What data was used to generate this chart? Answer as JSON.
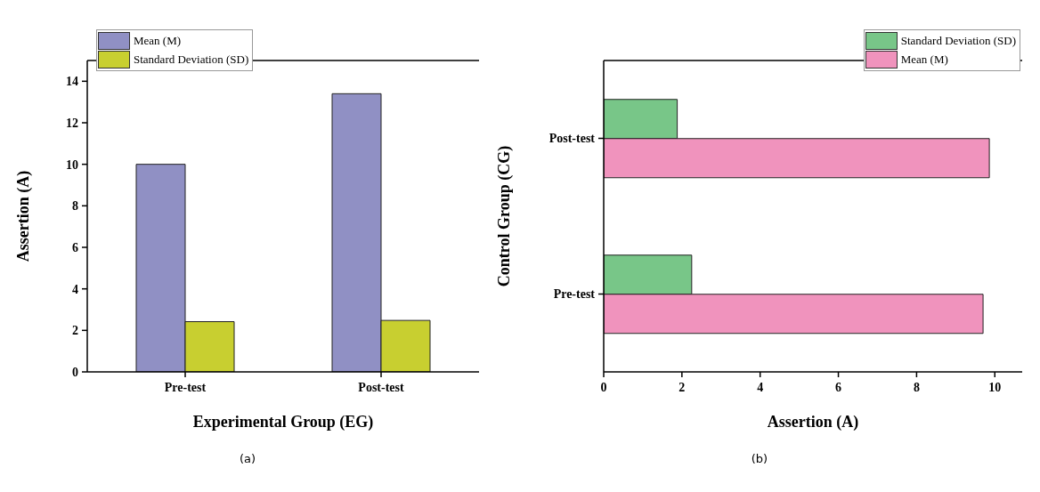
{
  "chart_data": [
    {
      "type": "bar",
      "xlabel": "Experimental Group (EG)",
      "ylabel": "Assertion (A)",
      "categories": [
        "Pre-test",
        "Post-test"
      ],
      "series": [
        {
          "name": "Mean (M)",
          "color": "#9090c4",
          "values": [
            10,
            13.4
          ]
        },
        {
          "name": "Standard Deviation (SD)",
          "color": "#c8cf30",
          "values": [
            2.42,
            2.48
          ]
        }
      ],
      "ylim": [
        0,
        15
      ],
      "yticks": [
        0,
        2,
        4,
        6,
        8,
        10,
        12,
        14
      ],
      "legend": "top left",
      "annotations": [
        "(a)"
      ]
    },
    {
      "type": "bar",
      "orientation": "horizontal",
      "xlabel": "Assertion (A)",
      "ylabel": "Control Group (CG)",
      "categories": [
        "Post-test",
        "Pre-test"
      ],
      "series": [
        {
          "name": "Standard Deviation (SD)",
          "color": "#78c688",
          "values": [
            1.88,
            2.25
          ]
        },
        {
          "name": "Mean (M)",
          "color": "#f093bd",
          "values": [
            9.86,
            9.7
          ]
        }
      ],
      "xlim": [
        0,
        10.7
      ],
      "xticks": [
        0,
        2,
        4,
        6,
        8,
        10
      ],
      "legend": "top right",
      "annotations": [
        "(b)"
      ]
    }
  ]
}
